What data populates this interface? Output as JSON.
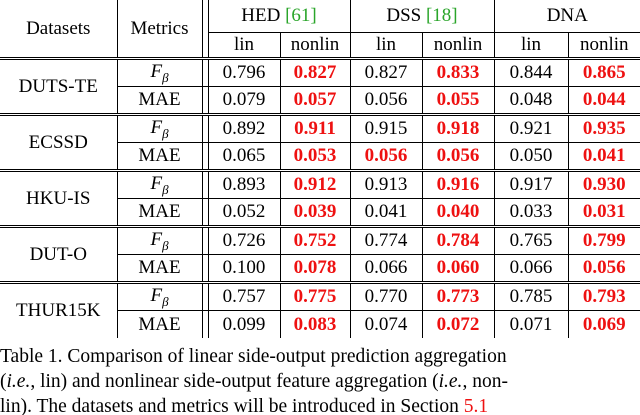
{
  "table": {
    "header": {
      "datasets": "Datasets",
      "metrics": "Metrics",
      "methods": [
        {
          "name": "HED",
          "cite": "[61]"
        },
        {
          "name": "DSS",
          "cite": "[18]"
        },
        {
          "name": "DNA",
          "cite": ""
        }
      ],
      "sub": [
        "lin",
        "nonlin",
        "lin",
        "nonlin",
        "lin",
        "nonlin"
      ]
    },
    "metric_labels": {
      "f_base": "F",
      "f_sub": "β",
      "mae": "MAE"
    },
    "datasets": [
      {
        "name": "DUTS-TE",
        "f": [
          "0.796",
          "0.827",
          "0.827",
          "0.833",
          "0.844",
          "0.865"
        ],
        "mae": [
          "0.079",
          "0.057",
          "0.056",
          "0.055",
          "0.048",
          "0.044"
        ]
      },
      {
        "name": "ECSSD",
        "f": [
          "0.892",
          "0.911",
          "0.915",
          "0.918",
          "0.921",
          "0.935"
        ],
        "mae": [
          "0.065",
          "0.053",
          "0.056",
          "0.056",
          "0.050",
          "0.041"
        ]
      },
      {
        "name": "HKU-IS",
        "f": [
          "0.893",
          "0.912",
          "0.913",
          "0.916",
          "0.917",
          "0.930"
        ],
        "mae": [
          "0.052",
          "0.039",
          "0.041",
          "0.040",
          "0.033",
          "0.031"
        ]
      },
      {
        "name": "DUT-O",
        "f": [
          "0.726",
          "0.752",
          "0.774",
          "0.784",
          "0.765",
          "0.799"
        ],
        "mae": [
          "0.100",
          "0.078",
          "0.066",
          "0.060",
          "0.066",
          "0.056"
        ]
      },
      {
        "name": "THUR15K",
        "f": [
          "0.757",
          "0.775",
          "0.770",
          "0.773",
          "0.785",
          "0.793"
        ],
        "mae": [
          "0.099",
          "0.083",
          "0.074",
          "0.072",
          "0.071",
          "0.069"
        ]
      }
    ],
    "bold_red": {
      "f": [
        [
          1,
          3,
          5
        ],
        [
          1,
          3,
          5
        ],
        [
          1,
          3,
          5
        ],
        [
          1,
          3,
          5
        ],
        [
          1,
          3,
          5
        ]
      ],
      "mae": [
        [
          1,
          3,
          5
        ],
        [
          1,
          2,
          3,
          5
        ],
        [
          1,
          3,
          5
        ],
        [
          1,
          3,
          5
        ],
        [
          1,
          3,
          5
        ]
      ]
    }
  },
  "caption": {
    "line1": "Table 1. Comparison of linear side-output prediction aggregation",
    "line2": "(i.e., lin) and nonlinear side-output feature aggregation (i.e., non-",
    "line3_pre": "lin). The datasets and metrics will be introduced in Section ",
    "line3_ref": "5.1"
  },
  "colors": {
    "highlight": "#ee1111",
    "citation": "#2aa52a",
    "text": "#000000"
  }
}
